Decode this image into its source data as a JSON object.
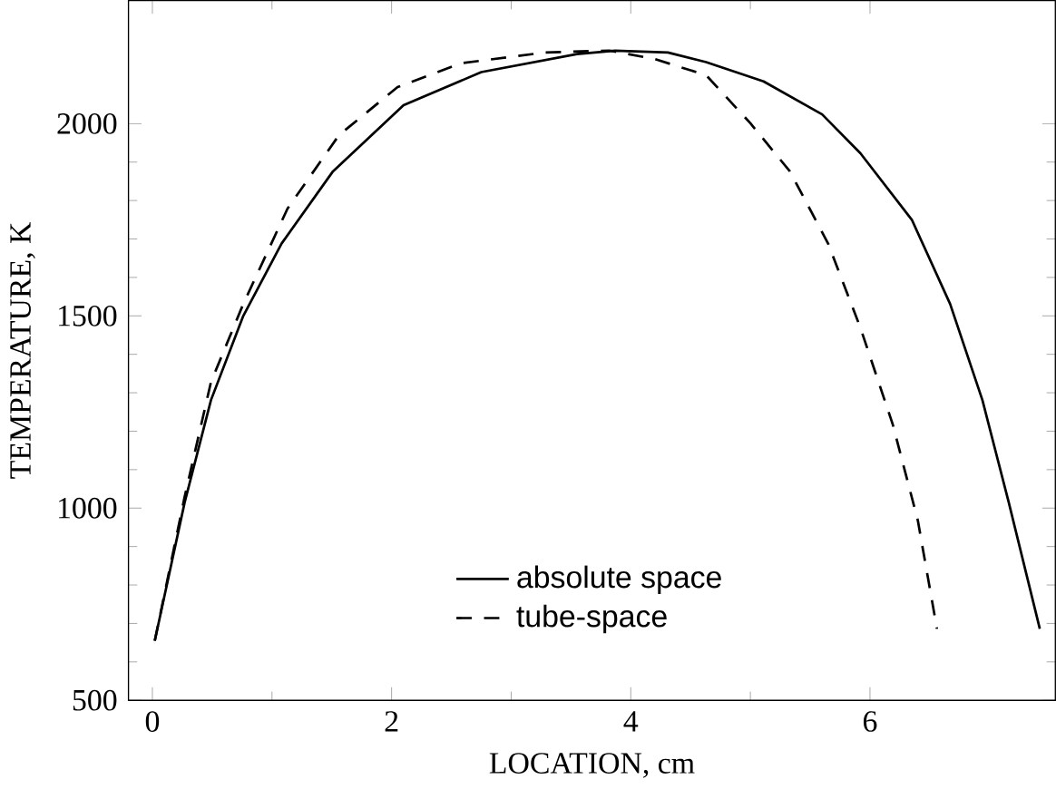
{
  "chart_data": {
    "type": "line",
    "xlabel": "LOCATION, cm",
    "ylabel": "TEMPERATURE, K",
    "xlim": [
      -0.2,
      7.55
    ],
    "ylim": [
      500,
      2320
    ],
    "xticks": [
      0,
      2,
      4,
      6
    ],
    "yticks": [
      500,
      1000,
      1500,
      2000
    ],
    "grid": false,
    "legend": "bottom",
    "marker": "none",
    "series": [
      {
        "name": "absolute space",
        "color": "#000000",
        "line_style": "solid",
        "x": [
          0.02,
          0.27,
          0.49,
          0.76,
          1.08,
          1.51,
          2.1,
          2.75,
          3.55,
          3.87,
          4.31,
          4.63,
          5.11,
          5.6,
          5.92,
          6.35,
          6.67,
          6.94,
          7.16,
          7.42
        ],
        "values": [
          655,
          1015,
          1281,
          1500,
          1688,
          1876,
          2048,
          2134,
          2181,
          2190,
          2185,
          2160,
          2110,
          2024,
          1923,
          1750,
          1531,
          1281,
          1015,
          686
        ]
      },
      {
        "name": "tube-space",
        "color": "#000000",
        "line_style": "dashed",
        "x": [
          0.02,
          0.27,
          0.49,
          0.76,
          1.13,
          1.56,
          2.05,
          2.58,
          3.28,
          3.82,
          4.2,
          4.63,
          5.0,
          5.33,
          5.65,
          5.92,
          6.19,
          6.4,
          6.56
        ],
        "values": [
          655,
          1030,
          1328,
          1531,
          1779,
          1970,
          2095,
          2157,
          2185,
          2190,
          2168,
          2126,
          2001,
          1876,
          1688,
          1469,
          1218,
          968,
          686
        ]
      }
    ]
  }
}
